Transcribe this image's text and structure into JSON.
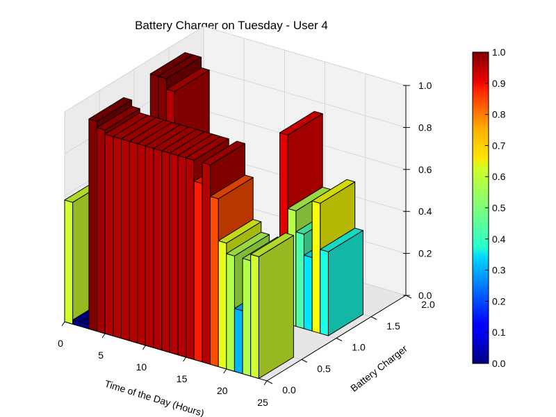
{
  "chart_data": {
    "type": "bar3d",
    "title": "Battery Charger on Tuesday - User 4",
    "xlabel": "Time of the Day (Hours)",
    "ylabel": "Battery Charger",
    "xticks": [
      "0",
      "5",
      "10",
      "15",
      "20",
      "25"
    ],
    "yticks": [
      "0.0",
      "0.5",
      "1.0",
      "1.5",
      "2.0"
    ],
    "zticks": [
      "0.0",
      "0.2",
      "0.4",
      "0.6",
      "0.8",
      "1.0"
    ],
    "xlim": [
      0,
      25
    ],
    "ylim": [
      0,
      2
    ],
    "zlim": [
      0,
      1
    ],
    "colorbar": {
      "ticks": [
        "0.0",
        "0.1",
        "0.2",
        "0.3",
        "0.4",
        "0.5",
        "0.6",
        "0.7",
        "0.8",
        "0.9",
        "1.0"
      ],
      "range": [
        0,
        1
      ]
    },
    "grid": true,
    "bars": [
      {
        "x": 0,
        "y": 0,
        "z": 0.58
      },
      {
        "x": 1,
        "y": 0,
        "z": 0.02
      },
      {
        "x": 2,
        "y": 0,
        "z": 0.02
      },
      {
        "x": 3,
        "y": 0,
        "z": 1.0
      },
      {
        "x": 4,
        "y": 0,
        "z": 0.97
      },
      {
        "x": 5,
        "y": 0,
        "z": 0.95
      },
      {
        "x": 6,
        "y": 0,
        "z": 0.95
      },
      {
        "x": 7,
        "y": 0,
        "z": 0.95
      },
      {
        "x": 8,
        "y": 0,
        "z": 0.95
      },
      {
        "x": 9,
        "y": 0,
        "z": 0.95
      },
      {
        "x": 10,
        "y": 0,
        "z": 0.95
      },
      {
        "x": 11,
        "y": 0,
        "z": 0.95
      },
      {
        "x": 12,
        "y": 0,
        "z": 0.95
      },
      {
        "x": 13,
        "y": 0,
        "z": 0.95
      },
      {
        "x": 14,
        "y": 0,
        "z": 0.95
      },
      {
        "x": 15,
        "y": 0,
        "z": 0.95
      },
      {
        "x": 16,
        "y": 0,
        "z": 0.85
      },
      {
        "x": 17,
        "y": 0,
        "z": 0.95
      },
      {
        "x": 18,
        "y": 0,
        "z": 0.8
      },
      {
        "x": 19,
        "y": 0,
        "z": 0.6
      },
      {
        "x": 20,
        "y": 0,
        "z": 0.55
      },
      {
        "x": 21,
        "y": 0,
        "z": 0.3
      },
      {
        "x": 22,
        "y": 0,
        "z": 0.55
      },
      {
        "x": 23,
        "y": 0,
        "z": 0.58
      },
      {
        "x": 0,
        "y": 1,
        "z": 0.7
      },
      {
        "x": 1,
        "y": 1,
        "z": 0.7
      },
      {
        "x": 2,
        "y": 1,
        "z": 1.0
      },
      {
        "x": 3,
        "y": 1,
        "z": 1.0
      },
      {
        "x": 4,
        "y": 1,
        "z": 0.95
      },
      {
        "x": 18,
        "y": 1,
        "z": 0.9
      },
      {
        "x": 19,
        "y": 1,
        "z": 0.55
      },
      {
        "x": 20,
        "y": 1,
        "z": 0.45
      },
      {
        "x": 21,
        "y": 1,
        "z": 0.35
      },
      {
        "x": 22,
        "y": 1,
        "z": 0.62
      },
      {
        "x": 23,
        "y": 1,
        "z": 0.4
      }
    ]
  }
}
